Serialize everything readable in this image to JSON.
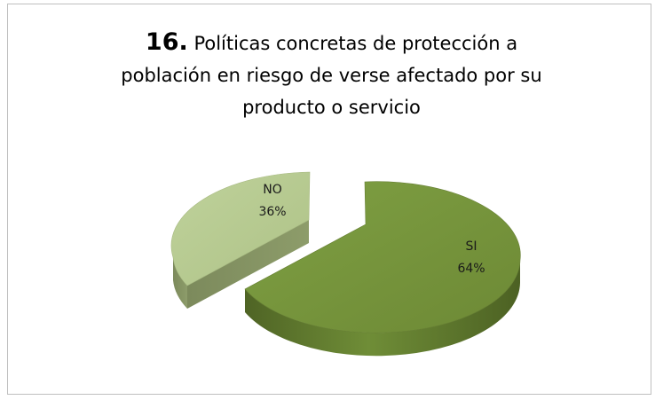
{
  "chart_data": {
    "type": "pie",
    "title_number": "16.",
    "title_line1": "Políticas concretas de protección a",
    "title_line2": "población en riesgo de verse afectado por su",
    "title_line3": "producto o servicio",
    "slices": [
      {
        "label": "SI",
        "percent_label": "64%",
        "value": 64,
        "color": "#77933C"
      },
      {
        "label": "NO",
        "percent_label": "36%",
        "value": 36,
        "color": "#B6C98F"
      }
    ],
    "legend": "none",
    "three_d": true,
    "exploded": true
  }
}
